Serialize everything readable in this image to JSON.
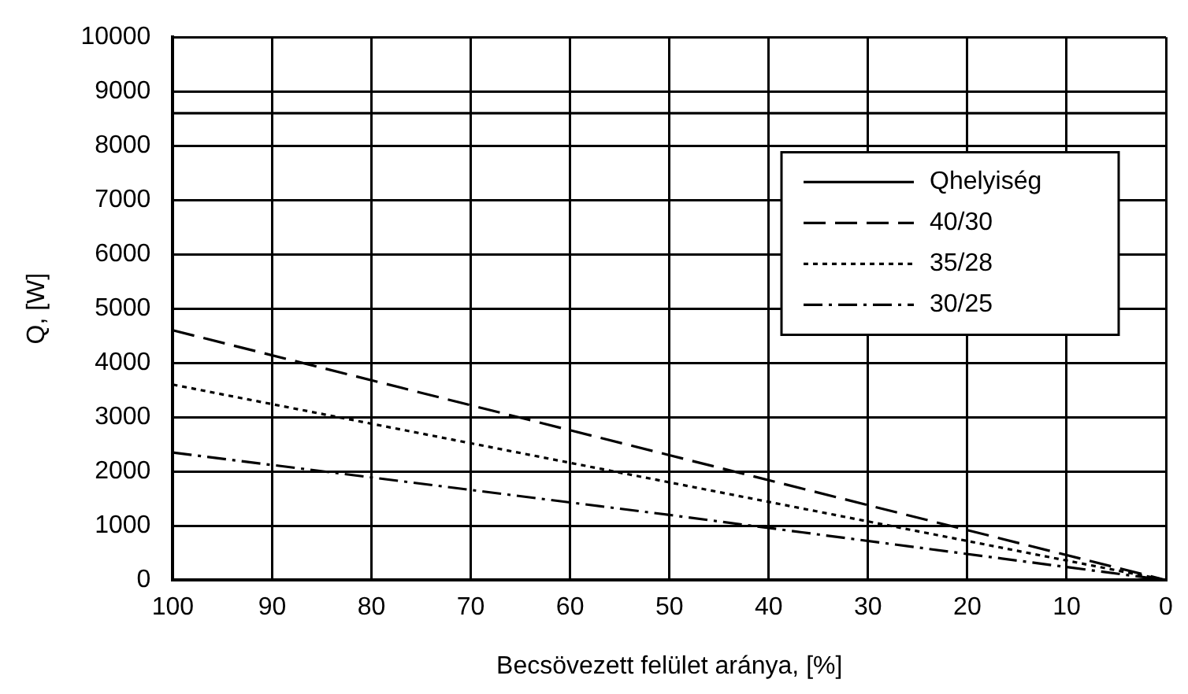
{
  "chart_data": {
    "type": "line",
    "xlabel": "Becsövezett felület aránya, [%]",
    "ylabel": "Q, [W]",
    "xlim": [
      100,
      0
    ],
    "xticks": [
      100,
      90,
      80,
      70,
      60,
      50,
      40,
      30,
      20,
      10,
      0
    ],
    "ylim": [
      0,
      10000
    ],
    "yticks": [
      0,
      1000,
      2000,
      3000,
      4000,
      5000,
      6000,
      7000,
      8000,
      9000,
      10000
    ],
    "grid": true,
    "legend": "right",
    "marker": "none",
    "series": [
      {
        "name": "Qhelyiség",
        "color": "#000000",
        "line_style": "solid",
        "x": [
          100,
          50,
          0
        ],
        "values": [
          8600,
          8600,
          8600
        ]
      },
      {
        "name": "40/30",
        "color": "#000000",
        "line_style": "dashed",
        "x": [
          100,
          50,
          0
        ],
        "values": [
          4600,
          2300,
          0
        ]
      },
      {
        "name": "35/28",
        "color": "#000000",
        "line_style": "dotted",
        "x": [
          100,
          50,
          0
        ],
        "values": [
          3600,
          1800,
          0
        ]
      },
      {
        "name": "30/25",
        "color": "#000000",
        "line_style": "dashdot",
        "x": [
          100,
          50,
          0
        ],
        "values": [
          2350,
          1200,
          0
        ]
      }
    ]
  }
}
